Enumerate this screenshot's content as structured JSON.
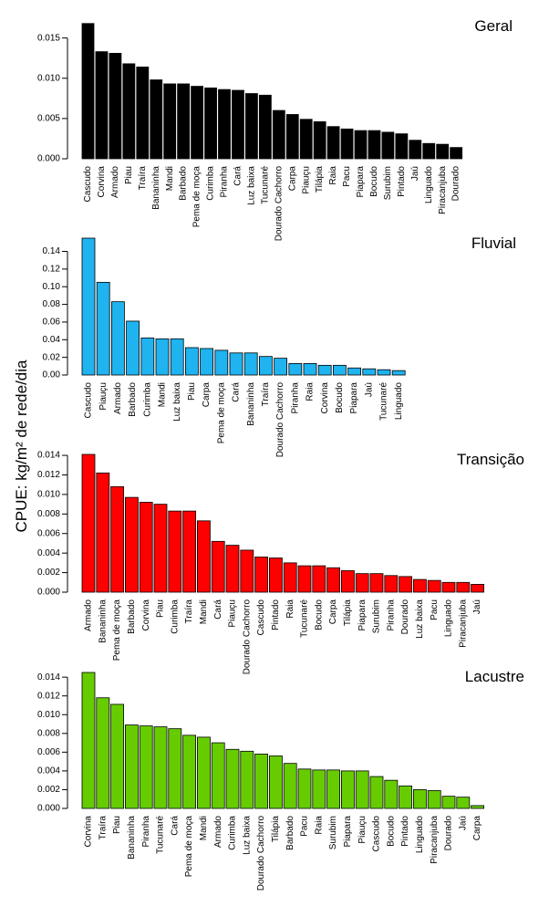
{
  "ylabel": "CPUE: kg/m² de rede/dia",
  "chart_data": [
    {
      "type": "bar",
      "title": "Geral",
      "color": "#000000",
      "ylim": [
        0,
        0.017
      ],
      "yticks": [
        "0.000",
        "0.005",
        "0.010",
        "0.015"
      ],
      "categories": [
        "Cascudo",
        "Corvina",
        "Armado",
        "Piau",
        "Traíra",
        "Bananinha",
        "Mandi",
        "Barbado",
        "Pema de moça",
        "Curimba",
        "Piranha",
        "Cará",
        "Luz baixa",
        "Tucunaré",
        "Dourado Cachorro",
        "Carpa",
        "Piauçu",
        "Tilápia",
        "Raia",
        "Pacu",
        "Piapara",
        "Bocudo",
        "Surubim",
        "Pintado",
        "Jaú",
        "Linguado",
        "Piracanjuba",
        "Dourado"
      ],
      "values": [
        0.0168,
        0.0133,
        0.0131,
        0.0118,
        0.0114,
        0.0098,
        0.0093,
        0.0093,
        0.009,
        0.0088,
        0.0086,
        0.0085,
        0.0081,
        0.0079,
        0.006,
        0.0055,
        0.0049,
        0.0046,
        0.004,
        0.0037,
        0.0035,
        0.0035,
        0.0033,
        0.0031,
        0.0023,
        0.0019,
        0.0018,
        0.0014
      ]
    },
    {
      "type": "bar",
      "title": "Fluvial",
      "color": "#1FB3F0",
      "ylim": [
        0,
        0.155
      ],
      "yticks": [
        "0.00",
        "0.02",
        "0.04",
        "0.06",
        "0.08",
        "0.10",
        "0.12",
        "0.14"
      ],
      "categories": [
        "Cascudo",
        "Piauçu",
        "Armado",
        "Barbado",
        "Curimba",
        "Mandi",
        "Luz baixa",
        "Piau",
        "Carpa",
        "Pema de moça",
        "Cará",
        "Bananinha",
        "Traíra",
        "Dourado Cachorro",
        "Piranha",
        "Raia",
        "Corvina",
        "Bocudo",
        "Piapara",
        "Jaú",
        "Tucunaré",
        "Linguado"
      ],
      "values": [
        0.155,
        0.105,
        0.083,
        0.061,
        0.042,
        0.041,
        0.041,
        0.031,
        0.03,
        0.028,
        0.025,
        0.025,
        0.021,
        0.019,
        0.013,
        0.013,
        0.011,
        0.011,
        0.008,
        0.007,
        0.006,
        0.005
      ]
    },
    {
      "type": "bar",
      "title": "Transição",
      "color": "#FF0000",
      "ylim": [
        0,
        0.0141
      ],
      "yticks": [
        "0.000",
        "0.002",
        "0.004",
        "0.006",
        "0.008",
        "0.010",
        "0.012",
        "0.014"
      ],
      "categories": [
        "Armado",
        "Bananinha",
        "Pema de moça",
        "Barbado",
        "Corvina",
        "Piau",
        "Curimba",
        "Traíra",
        "Mandi",
        "Cará",
        "Piauçu",
        "Dourado Cachorro",
        "Cascudo",
        "Pintado",
        "Raia",
        "Tucunaré",
        "Bocudo",
        "Carpa",
        "Tilápia",
        "Piapara",
        "Surubim",
        "Piranha",
        "Dourado",
        "Luz baixa",
        "Pacu",
        "Linguado",
        "Piracanjuba",
        "Jaú"
      ],
      "values": [
        0.0141,
        0.0122,
        0.0108,
        0.0097,
        0.0092,
        0.009,
        0.0083,
        0.0083,
        0.0073,
        0.0052,
        0.0048,
        0.0043,
        0.0036,
        0.0035,
        0.003,
        0.0027,
        0.0027,
        0.0025,
        0.0022,
        0.0019,
        0.0019,
        0.0017,
        0.0016,
        0.0013,
        0.0012,
        0.001,
        0.001,
        0.0008
      ]
    },
    {
      "type": "bar",
      "title": "Lacustre",
      "color": "#66CC00",
      "ylim": [
        0,
        0.0145
      ],
      "yticks": [
        "0.000",
        "0.002",
        "0.004",
        "0.006",
        "0.008",
        "0.010",
        "0.012",
        "0.014"
      ],
      "categories": [
        "Corvina",
        "Traíra",
        "Piau",
        "Bananinha",
        "Piranha",
        "Tucunaré",
        "Cará",
        "Pema de moça",
        "Mandi",
        "Armado",
        "Curimba",
        "Luz baixa",
        "Dourado Cachorro",
        "Tilápia",
        "Barbado",
        "Pacu",
        "Raia",
        "Surubim",
        "Piapara",
        "Piauçu",
        "Cascudo",
        "Bocudo",
        "Pintado",
        "Linguado",
        "Piracanjuba",
        "Dourado",
        "Jaú",
        "Carpa"
      ],
      "values": [
        0.0145,
        0.0118,
        0.0111,
        0.0089,
        0.0088,
        0.0087,
        0.0085,
        0.0078,
        0.0076,
        0.007,
        0.0063,
        0.0061,
        0.0058,
        0.0056,
        0.0048,
        0.0042,
        0.0041,
        0.0041,
        0.004,
        0.004,
        0.0034,
        0.003,
        0.0024,
        0.002,
        0.0019,
        0.0013,
        0.0012,
        0.0003
      ]
    }
  ]
}
